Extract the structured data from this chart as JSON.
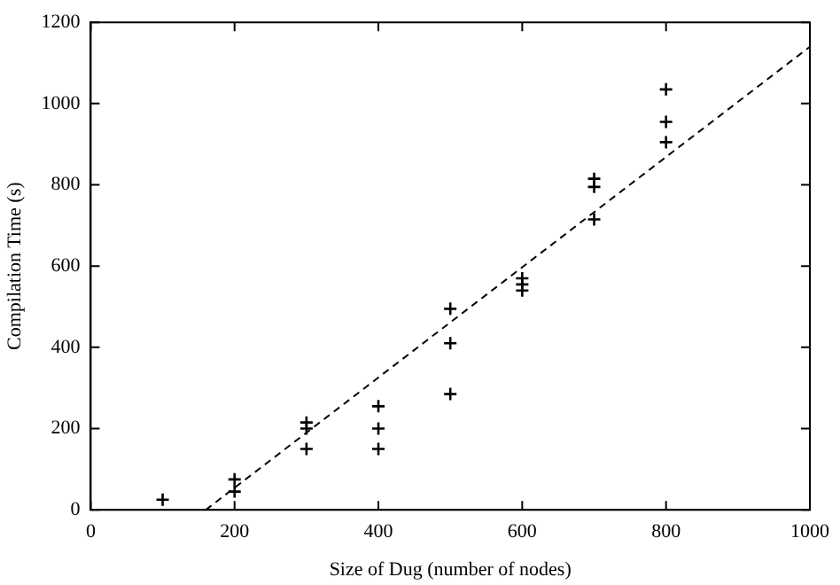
{
  "chart_data": {
    "type": "scatter",
    "xlabel": "Size of Dug (number of nodes)",
    "ylabel": "Compilation Time (s)",
    "xlim": [
      0,
      1000
    ],
    "xticks": [
      0,
      200,
      400,
      600,
      800,
      1000
    ],
    "ylim": [
      0,
      1200
    ],
    "yticks": [
      0,
      200,
      400,
      600,
      800,
      1000,
      1200
    ],
    "grid": false,
    "legend": false,
    "marker": "cross",
    "series": [
      {
        "color": "#000000",
        "x": [
          100,
          200,
          200,
          300,
          300,
          300,
          400,
          400,
          400,
          500,
          500,
          500,
          600,
          600,
          600,
          700,
          700,
          700,
          800,
          800,
          800
        ],
        "values": [
          25,
          75,
          45,
          215,
          200,
          150,
          255,
          200,
          150,
          495,
          410,
          285,
          570,
          555,
          540,
          815,
          795,
          715,
          1035,
          955,
          905
        ]
      },
      {
        "type": "line",
        "color": "#000000",
        "line_style": "dashed",
        "marker": "none",
        "x": [
          160,
          1000
        ],
        "values": [
          0,
          1140
        ]
      }
    ]
  }
}
